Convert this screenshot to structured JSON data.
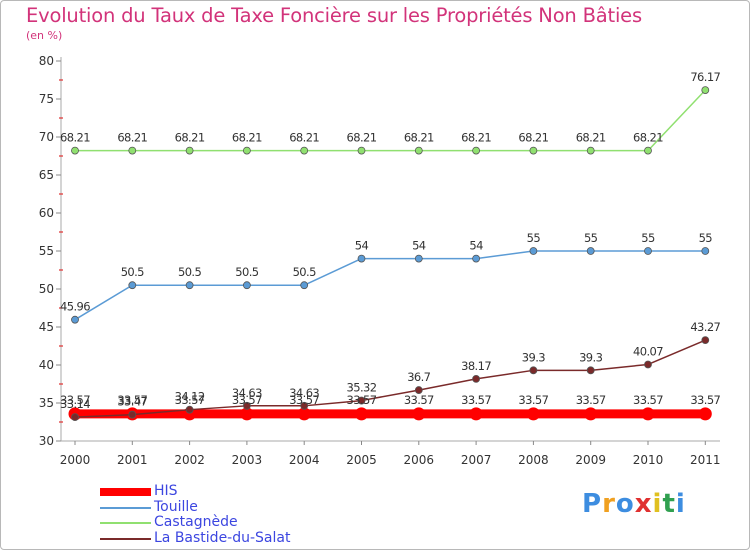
{
  "chart_data": {
    "type": "line",
    "title": "Evolution du Taux de Taxe Foncière sur les Propriétés Non Bâties",
    "ylabel": "(en %)",
    "xlabel": "",
    "categories": [
      "2000",
      "2001",
      "2002",
      "2003",
      "2004",
      "2005",
      "2006",
      "2007",
      "2008",
      "2009",
      "2010",
      "2011"
    ],
    "ylim": [
      30,
      80
    ],
    "yticks": [
      30,
      35,
      40,
      45,
      50,
      55,
      60,
      65,
      70,
      75,
      80
    ],
    "grid": false,
    "legend_position": "bottom-left",
    "series": [
      {
        "name": "HIS",
        "color": "#ff0000",
        "values": [
          33.57,
          33.57,
          33.57,
          33.57,
          33.57,
          33.57,
          33.57,
          33.57,
          33.57,
          33.57,
          33.57,
          33.57
        ],
        "labels": [
          "33.57",
          "33.57",
          "33.57",
          "33.57",
          "33.57",
          "33.57",
          "33.57",
          "33.57",
          "33.57",
          "33.57",
          "33.57",
          "33.57"
        ]
      },
      {
        "name": "Touille",
        "color": "#5b9bd5",
        "values": [
          45.96,
          50.5,
          50.5,
          50.5,
          50.5,
          54,
          54,
          54,
          55,
          55,
          55,
          55
        ],
        "labels": [
          "45.96",
          "50.5",
          "50.5",
          "50.5",
          "50.5",
          "54",
          "54",
          "54",
          "55",
          "55",
          "55",
          "55"
        ]
      },
      {
        "name": "Castagnède",
        "color": "#90e070",
        "values": [
          68.21,
          68.21,
          68.21,
          68.21,
          68.21,
          68.21,
          68.21,
          68.21,
          68.21,
          68.21,
          68.21,
          76.17
        ],
        "labels": [
          "68.21",
          "68.21",
          "68.21",
          "68.21",
          "68.21",
          "68.21",
          "68.21",
          "68.21",
          "68.21",
          "68.21",
          "68.21",
          "76.17"
        ]
      },
      {
        "name": "La Bastide-du-Salat",
        "color": "#7a2a2a",
        "values": [
          33.14,
          33.47,
          34.12,
          34.63,
          34.63,
          35.32,
          36.7,
          38.17,
          39.3,
          39.3,
          40.07,
          43.27
        ],
        "labels": [
          "33.14",
          "33.47",
          "34.12",
          "34.63",
          "34.63",
          "35.32",
          "36.7",
          "38.17",
          "39.3",
          "39.3",
          "40.07",
          "43.27"
        ]
      }
    ]
  },
  "logo": {
    "letters": [
      "P",
      "r",
      "o",
      "x",
      "i",
      "t",
      "i"
    ],
    "colors": [
      "#3d8de0",
      "#f0a020",
      "#3d8de0",
      "#e03030",
      "#e0c020",
      "#30a050",
      "#3d8de0"
    ]
  }
}
